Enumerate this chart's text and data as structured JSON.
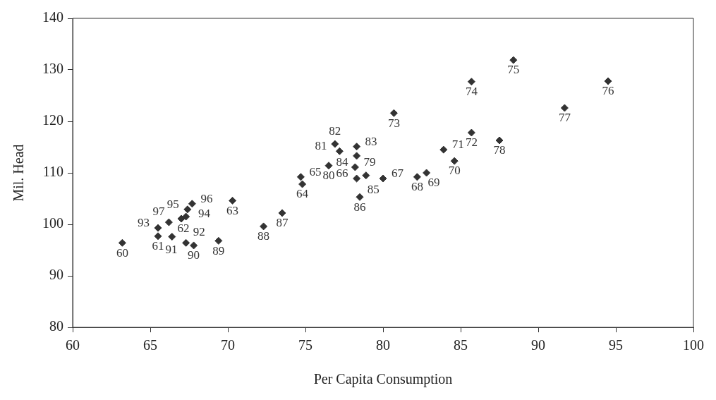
{
  "chart_data": {
    "type": "scatter",
    "xlabel": "Per Capita Consumption",
    "ylabel": "Mil. Head",
    "xlim": [
      60,
      100
    ],
    "xticks": [
      60,
      65,
      70,
      75,
      80,
      85,
      90,
      95,
      100
    ],
    "ylim": [
      80,
      140
    ],
    "yticks": [
      80,
      90,
      100,
      110,
      120,
      130,
      140
    ],
    "grid": false,
    "legend": false,
    "marker": "diamond",
    "series": [
      {
        "color": "#333333",
        "x": [
          63.2,
          65.5,
          66.2,
          70.3,
          74.8,
          74.7,
          78.3,
          80.0,
          82.2,
          82.8,
          84.6,
          83.9,
          85.7,
          80.7,
          85.7,
          88.4,
          94.5,
          91.7,
          87.5,
          78.2,
          76.5,
          77.2,
          76.9,
          78.3,
          78.3,
          78.9,
          78.5,
          73.5,
          72.3,
          69.4,
          67.8,
          67.3,
          66.4,
          65.5,
          67.0,
          67.4,
          67.7,
          67.3
        ],
        "values": [
          96.4,
          97.7,
          100.4,
          104.6,
          107.8,
          109.2,
          108.9,
          108.9,
          109.2,
          110.0,
          112.3,
          114.5,
          117.8,
          121.6,
          127.7,
          131.9,
          127.8,
          122.6,
          116.3,
          111.1,
          111.4,
          114.2,
          115.6,
          115.1,
          113.3,
          109.5,
          105.3,
          102.2,
          99.6,
          96.8,
          95.9,
          96.4,
          97.6,
          99.3,
          101.1,
          102.9,
          104.0,
          101.5
        ]
      }
    ],
    "annotations": [
      {
        "text": "60",
        "x": 63.2,
        "y": 96.4
      },
      {
        "text": "61",
        "x": 65.5,
        "y": 97.7
      },
      {
        "text": "62",
        "x": 66.2,
        "y": 100.4
      },
      {
        "text": "63",
        "x": 70.3,
        "y": 104.6
      },
      {
        "text": "64",
        "x": 74.8,
        "y": 107.8
      },
      {
        "text": "65",
        "x": 74.7,
        "y": 109.2
      },
      {
        "text": "66",
        "x": 78.3,
        "y": 108.9
      },
      {
        "text": "67",
        "x": 80.0,
        "y": 108.9
      },
      {
        "text": "68",
        "x": 82.2,
        "y": 109.2
      },
      {
        "text": "69",
        "x": 82.8,
        "y": 110.0
      },
      {
        "text": "70",
        "x": 84.6,
        "y": 112.3
      },
      {
        "text": "71",
        "x": 83.9,
        "y": 114.5
      },
      {
        "text": "72",
        "x": 85.7,
        "y": 117.8
      },
      {
        "text": "73",
        "x": 80.7,
        "y": 121.6
      },
      {
        "text": "74",
        "x": 85.7,
        "y": 127.7
      },
      {
        "text": "75",
        "x": 88.4,
        "y": 131.9
      },
      {
        "text": "76",
        "x": 94.5,
        "y": 127.8
      },
      {
        "text": "77",
        "x": 91.7,
        "y": 122.6
      },
      {
        "text": "78",
        "x": 87.5,
        "y": 116.3
      },
      {
        "text": "79",
        "x": 78.2,
        "y": 111.1
      },
      {
        "text": "80",
        "x": 76.5,
        "y": 111.4
      },
      {
        "text": "81",
        "x": 77.2,
        "y": 114.2
      },
      {
        "text": "82",
        "x": 76.9,
        "y": 115.6
      },
      {
        "text": "83",
        "x": 78.3,
        "y": 115.1
      },
      {
        "text": "84",
        "x": 78.3,
        "y": 113.3
      },
      {
        "text": "85",
        "x": 78.9,
        "y": 109.5
      },
      {
        "text": "86",
        "x": 78.5,
        "y": 105.3
      },
      {
        "text": "87",
        "x": 73.5,
        "y": 102.2
      },
      {
        "text": "88",
        "x": 72.3,
        "y": 99.6
      },
      {
        "text": "89",
        "x": 69.4,
        "y": 96.8
      },
      {
        "text": "90",
        "x": 67.8,
        "y": 95.9
      },
      {
        "text": "91",
        "x": 67.3,
        "y": 96.4
      },
      {
        "text": "92",
        "x": 66.4,
        "y": 97.6
      },
      {
        "text": "93",
        "x": 65.5,
        "y": 99.3
      },
      {
        "text": "94",
        "x": 67.0,
        "y": 101.1
      },
      {
        "text": "95",
        "x": 67.4,
        "y": 102.9
      },
      {
        "text": "96",
        "x": 67.7,
        "y": 104.0
      },
      {
        "text": "97",
        "x": 67.3,
        "y": 101.5
      }
    ]
  }
}
